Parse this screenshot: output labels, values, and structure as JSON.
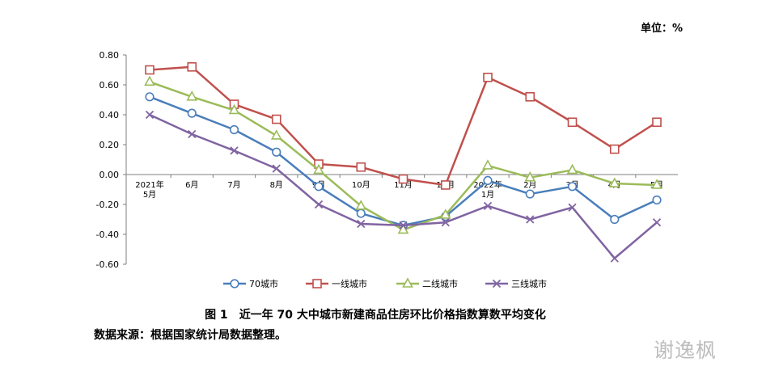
{
  "unit_label": "单位：%",
  "caption": {
    "number": "图 1",
    "text": "近一年 70 大中城市新建商品住房环比价格指数算数平均变化"
  },
  "source_note": "数据来源：根据国家统计局数据整理。",
  "watermark": "谢逸枫",
  "chart_data": {
    "type": "line",
    "categories": [
      [
        "2021年",
        "5月"
      ],
      [
        "6月"
      ],
      [
        "7月"
      ],
      [
        "8月"
      ],
      [
        "9月"
      ],
      [
        "10月"
      ],
      [
        "11月"
      ],
      [
        "12月"
      ],
      [
        "2022年",
        "1月"
      ],
      [
        "2月"
      ],
      [
        "3月"
      ],
      [
        "4月"
      ],
      [
        "5月"
      ]
    ],
    "y_ticks": [
      "0.80",
      "0.60",
      "0.40",
      "0.20",
      "0.00",
      "-0.20",
      "-0.40",
      "-0.60"
    ],
    "ylim": [
      -0.6,
      0.8
    ],
    "grid": false,
    "legend_position": "bottom",
    "series": [
      {
        "name": "70城市",
        "color": "#4a7ebb",
        "marker": "circle",
        "values": [
          0.52,
          0.41,
          0.3,
          0.15,
          -0.08,
          -0.26,
          -0.34,
          -0.28,
          -0.04,
          -0.13,
          -0.08,
          -0.3,
          -0.17
        ]
      },
      {
        "name": "一线城市",
        "color": "#c0504d",
        "marker": "square",
        "values": [
          0.7,
          0.72,
          0.47,
          0.37,
          0.07,
          0.05,
          -0.03,
          -0.07,
          0.65,
          0.52,
          0.35,
          0.17,
          0.35
        ]
      },
      {
        "name": "二线城市",
        "color": "#9bbb59",
        "marker": "triangle",
        "values": [
          0.62,
          0.52,
          0.43,
          0.26,
          0.03,
          -0.21,
          -0.37,
          -0.27,
          0.06,
          -0.02,
          0.03,
          -0.06,
          -0.07
        ]
      },
      {
        "name": "三线城市",
        "color": "#8064a2",
        "marker": "x",
        "values": [
          0.4,
          0.27,
          0.16,
          0.04,
          -0.2,
          -0.33,
          -0.34,
          -0.32,
          -0.21,
          -0.3,
          -0.22,
          -0.56,
          -0.32
        ]
      }
    ]
  }
}
